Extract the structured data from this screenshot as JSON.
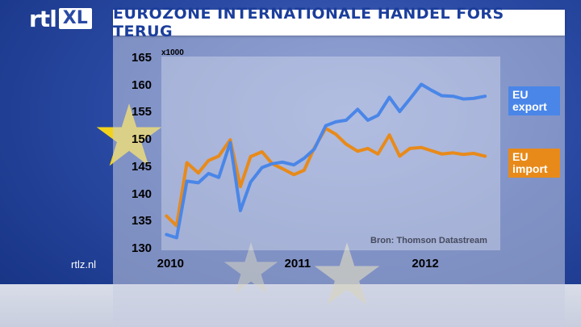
{
  "header": {
    "logo_rtl": "rtl",
    "logo_xl": "XL",
    "title": "EUROZONE INTERNATIONALE HANDEL FORS TERUG"
  },
  "footer": {
    "site": "rtlz.nl",
    "source": "Bron: Thomson Datastream"
  },
  "colors": {
    "export": "#4a86e8",
    "import": "#e88a1a",
    "title_text": "#1b3e9c"
  },
  "chart_data": {
    "type": "line",
    "title": "EUROZONE INTERNATIONALE HANDEL FORS TERUG",
    "y_unit": "x1000",
    "ylim": [
      130,
      165
    ],
    "y_ticks": [
      130,
      135,
      140,
      145,
      150,
      155,
      160,
      165
    ],
    "x_ticks": [
      {
        "label": "2010",
        "x": 2010.0
      },
      {
        "label": "2011",
        "x": 2011.0
      },
      {
        "label": "2012",
        "x": 2012.0
      }
    ],
    "xlim": [
      2009.92,
      2012.58
    ],
    "grid": false,
    "series": [
      {
        "name": "EU export",
        "label_lines": [
          "EU",
          "export"
        ],
        "color": "#4a86e8",
        "x": [
          2009.96,
          2010.04,
          2010.12,
          2010.21,
          2010.29,
          2010.37,
          2010.46,
          2010.54,
          2010.62,
          2010.71,
          2010.79,
          2010.87,
          2010.96,
          2011.04,
          2011.12,
          2011.21,
          2011.29,
          2011.37,
          2011.46,
          2011.54,
          2011.62,
          2011.71,
          2011.79,
          2011.87,
          2011.96,
          2012.04,
          2012.12,
          2012.21,
          2012.29,
          2012.37,
          2012.46
        ],
        "y": [
          132.6,
          132.0,
          142.4,
          142.1,
          143.8,
          143.1,
          149.5,
          137.0,
          142.2,
          144.9,
          145.6,
          145.9,
          145.4,
          146.6,
          148.3,
          152.6,
          153.3,
          153.6,
          155.6,
          153.6,
          154.5,
          157.8,
          155.2,
          157.5,
          160.2,
          159.1,
          158.1,
          158.0,
          157.5,
          157.6,
          158.0
        ]
      },
      {
        "name": "EU import",
        "label_lines": [
          "EU",
          "import"
        ],
        "color": "#e88a1a",
        "x": [
          2009.96,
          2010.04,
          2010.12,
          2010.21,
          2010.29,
          2010.37,
          2010.46,
          2010.54,
          2010.62,
          2010.71,
          2010.79,
          2010.87,
          2010.96,
          2011.04,
          2011.12,
          2011.21,
          2011.29,
          2011.37,
          2011.46,
          2011.54,
          2011.62,
          2011.71,
          2011.79,
          2011.87,
          2011.96,
          2012.04,
          2012.12,
          2012.21,
          2012.29,
          2012.37,
          2012.46
        ],
        "y": [
          136.0,
          134.2,
          145.8,
          143.9,
          146.2,
          147.0,
          150.0,
          141.4,
          146.9,
          147.8,
          145.6,
          144.7,
          143.6,
          144.4,
          148.5,
          152.1,
          151.0,
          149.2,
          147.9,
          148.4,
          147.4,
          150.9,
          147.0,
          148.4,
          148.6,
          148.0,
          147.4,
          147.6,
          147.3,
          147.5,
          147.0
        ]
      }
    ]
  }
}
